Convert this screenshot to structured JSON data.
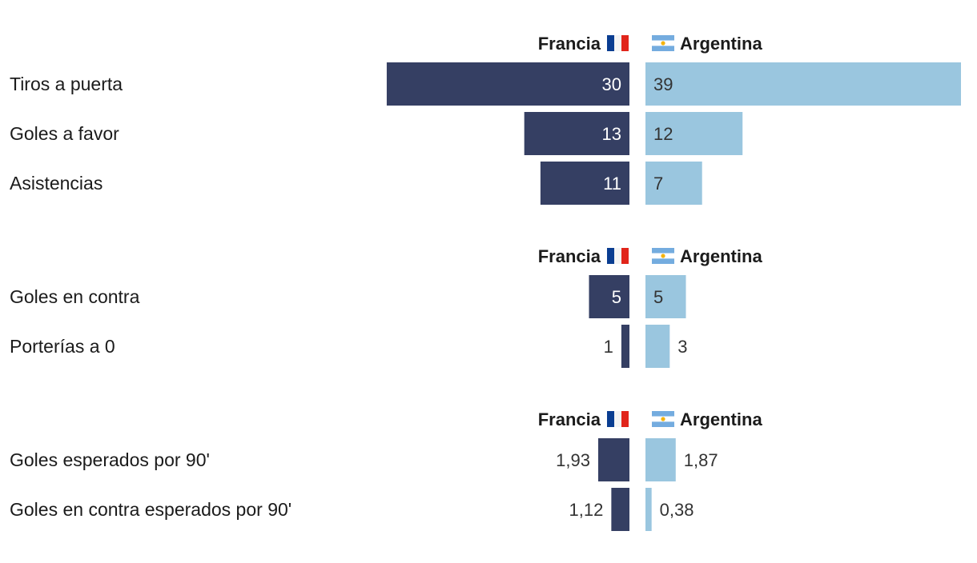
{
  "colors": {
    "francia": "#353f63",
    "argentina": "#9ac6df",
    "value_on_dark": "#ffffff",
    "value_on_light": "#333333",
    "text": "#1b1b1b"
  },
  "legend": {
    "francia": "Francia",
    "argentina": "Argentina",
    "francia_flag": "flag-france",
    "argentina_flag": "flag-argentina"
  },
  "chart_data": [
    {
      "type": "bar",
      "orientation": "horizontal-diverging",
      "categories": [
        "Tiros a puerta",
        "Goles a favor",
        "Asistencias"
      ],
      "series": [
        {
          "name": "Francia",
          "values": [
            30,
            13,
            11
          ],
          "labels": [
            "30",
            "13",
            "11"
          ]
        },
        {
          "name": "Argentina",
          "values": [
            39,
            12,
            7
          ],
          "labels": [
            "39",
            "12",
            "7"
          ]
        }
      ],
      "xmax": 39
    },
    {
      "type": "bar",
      "orientation": "horizontal-diverging",
      "categories": [
        "Goles en contra",
        "Porterías a 0"
      ],
      "series": [
        {
          "name": "Francia",
          "values": [
            5,
            1
          ],
          "labels": [
            "5",
            "1"
          ]
        },
        {
          "name": "Argentina",
          "values": [
            5,
            3
          ],
          "labels": [
            "5",
            "3"
          ]
        }
      ],
      "xmax": 39
    },
    {
      "type": "bar",
      "orientation": "horizontal-diverging",
      "categories": [
        "Goles esperados por 90'",
        "Goles en contra esperados por 90'"
      ],
      "series": [
        {
          "name": "Francia",
          "values": [
            1.93,
            1.12
          ],
          "labels": [
            "1,93",
            "1,12"
          ]
        },
        {
          "name": "Argentina",
          "values": [
            1.87,
            0.38
          ],
          "labels": [
            "1,87",
            "0,38"
          ]
        }
      ],
      "xmax": 19.5
    }
  ]
}
